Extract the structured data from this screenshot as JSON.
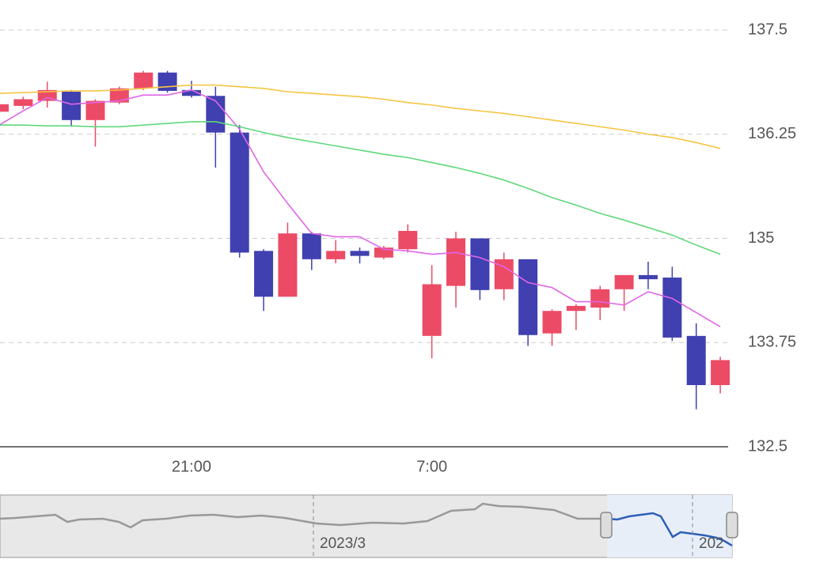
{
  "chart_data": {
    "type": "candlestick",
    "categories": [
      null,
      null,
      null,
      null,
      null,
      null,
      null,
      null,
      "21:00",
      null,
      null,
      null,
      null,
      null,
      null,
      null,
      null,
      null,
      "7:00",
      null,
      null,
      null,
      null,
      null,
      null,
      null,
      null,
      null,
      null,
      null,
      null
    ],
    "open": [
      136.52,
      136.59,
      136.65,
      136.76,
      136.42,
      136.63,
      136.8,
      136.99,
      136.78,
      136.71,
      136.27,
      134.85,
      134.3,
      135.06,
      134.75,
      134.85,
      134.77,
      134.87,
      133.83,
      134.43,
      135.0,
      134.39,
      134.75,
      133.86,
      134.13,
      134.17,
      134.39,
      134.56,
      134.53,
      133.83,
      133.24
    ],
    "close": [
      136.61,
      136.67,
      136.78,
      136.42,
      136.65,
      136.8,
      136.99,
      136.77,
      136.71,
      136.27,
      134.83,
      134.3,
      135.06,
      134.75,
      134.85,
      134.79,
      134.89,
      135.09,
      134.45,
      135.0,
      134.38,
      134.75,
      133.84,
      134.13,
      134.19,
      134.39,
      134.56,
      134.51,
      133.81,
      133.24,
      133.54
    ],
    "high": [
      136.62,
      136.7,
      136.88,
      136.78,
      136.67,
      136.82,
      137.01,
      137.01,
      136.89,
      136.82,
      136.36,
      134.87,
      135.19,
      135.08,
      134.98,
      134.89,
      134.91,
      135.17,
      134.68,
      135.08,
      135.0,
      134.83,
      134.75,
      134.15,
      134.21,
      134.43,
      134.56,
      134.72,
      134.66,
      133.98,
      133.58
    ],
    "low": [
      136.51,
      136.55,
      136.57,
      136.34,
      136.1,
      136.61,
      136.78,
      136.75,
      136.69,
      135.85,
      134.77,
      134.13,
      134.3,
      134.62,
      134.7,
      134.7,
      134.75,
      134.83,
      133.56,
      134.17,
      134.26,
      134.26,
      133.71,
      133.71,
      133.9,
      134.02,
      134.13,
      134.39,
      133.77,
      132.95,
      133.14
    ],
    "up_color": "#ec4b66",
    "down_color": "#4040b0",
    "lines": [
      {
        "color": "#e066e6",
        "values": [
          136.36,
          136.53,
          136.69,
          136.61,
          136.63,
          136.65,
          136.72,
          136.72,
          136.78,
          136.65,
          136.31,
          135.8,
          135.42,
          135.06,
          135.02,
          135.02,
          134.87,
          134.85,
          134.81,
          134.83,
          134.77,
          134.66,
          134.47,
          134.41,
          134.24,
          134.24,
          134.2,
          134.36,
          134.28,
          134.11,
          133.94
        ]
      },
      {
        "color": "#5fd87a",
        "values": [
          136.36,
          136.36,
          136.35,
          136.35,
          136.34,
          136.34,
          136.36,
          136.38,
          136.4,
          136.4,
          136.34,
          136.27,
          136.21,
          136.16,
          136.11,
          136.06,
          136.01,
          135.97,
          135.91,
          135.85,
          135.78,
          135.7,
          135.6,
          135.49,
          135.4,
          135.3,
          135.22,
          135.13,
          135.04,
          134.92,
          134.81
        ]
      },
      {
        "color": "#f5c542",
        "values": [
          136.74,
          136.75,
          136.76,
          136.77,
          136.77,
          136.78,
          136.8,
          136.82,
          136.84,
          136.84,
          136.82,
          136.8,
          136.76,
          136.74,
          136.72,
          136.7,
          136.67,
          136.63,
          136.6,
          136.56,
          136.53,
          136.5,
          136.46,
          136.42,
          136.38,
          136.34,
          136.3,
          136.25,
          136.21,
          136.15,
          136.08
        ]
      }
    ],
    "ylim": [
      132.5,
      137.5
    ],
    "yticks": [
      132.5,
      133.75,
      135,
      136.25,
      137.5
    ],
    "grid": true,
    "zoom_labels": [
      "2023/3",
      "202"
    ]
  }
}
